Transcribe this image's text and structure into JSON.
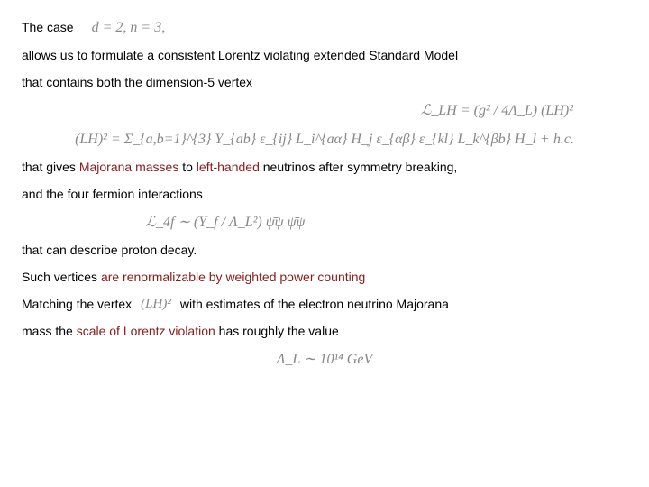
{
  "t1": "The case",
  "e_case": "đ = 2,       n = 3,",
  "t2": "allows us to formulate a consistent Lorentz violating extended Standard Model",
  "t3": "that contains both the dimension-5 vertex",
  "e_LLH": "ℒ_LH = (ḡ² / 4Λ_L) (LH)²",
  "e_LH2": "(LH)² = Σ_{a,b=1}^{3} Y_{ab} ε_{ij} L_i^{aα} H_j ε_{αβ} ε_{kl} L_k^{βb} H_l + h.c.",
  "t4a": "that gives ",
  "t4b": "Majorana masses",
  "t4c": " to ",
  "t4d": "left-handed",
  "t4e": " neutrinos after symmetry breaking,",
  "t5": "and the four fermion interactions",
  "e_4f": "ℒ_4f ∼ (Y_f / Λ_L²) ψ̄ψ ψ̄ψ",
  "t6": "that can describe proton decay.",
  "t7a": "Such vertices ",
  "t7b": "are renormalizable by weighted power counting",
  "t8a": "Matching the vertex",
  "e_LHsq": "(LH)²",
  "t8b": "with estimates of the electron neutrino Majorana",
  "t9a": "mass the ",
  "t9b": "scale of Lorentz violation",
  "t9c": " has roughly the value",
  "e_scale": "Λ_L ∼ 10¹⁴ GeV"
}
